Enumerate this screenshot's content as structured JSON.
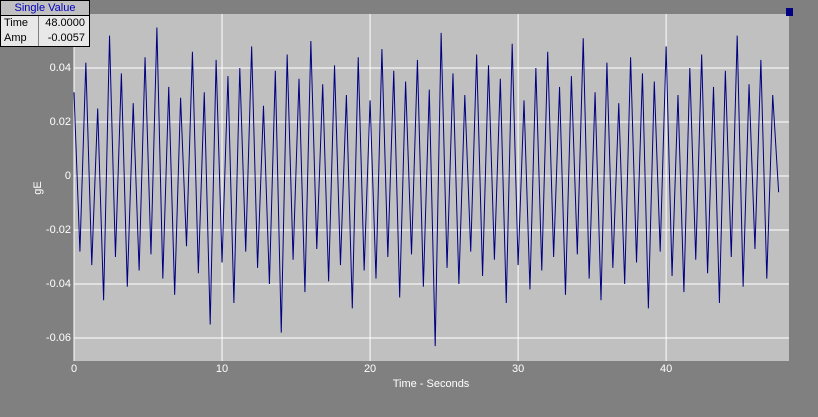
{
  "chart_data": {
    "type": "line",
    "ylabel": "gE",
    "xlabel": "Time - Seconds",
    "x": [
      0,
      0.4,
      0.8,
      1.2,
      1.6,
      2,
      2.4,
      2.8,
      3.2,
      3.6,
      4,
      4.4,
      4.8,
      5.2,
      5.6,
      6,
      6.4,
      6.8,
      7.2,
      7.6,
      8,
      8.4,
      8.8,
      9.2,
      9.6,
      10,
      10.4,
      10.8,
      11.2,
      11.6,
      12,
      12.4,
      12.8,
      13.2,
      13.6,
      14,
      14.4,
      14.8,
      15.2,
      15.6,
      16,
      16.4,
      16.8,
      17.2,
      17.6,
      18,
      18.4,
      18.8,
      19.2,
      19.6,
      20,
      20.4,
      20.8,
      21.2,
      21.6,
      22,
      22.4,
      22.8,
      23.2,
      23.6,
      24,
      24.4,
      24.8,
      25.2,
      25.6,
      26,
      26.4,
      26.8,
      27.2,
      27.6,
      28,
      28.4,
      28.8,
      29.2,
      29.6,
      30,
      30.4,
      30.8,
      31.2,
      31.6,
      32,
      32.4,
      32.8,
      33.2,
      33.6,
      34,
      34.4,
      34.8,
      35.2,
      35.6,
      36,
      36.4,
      36.8,
      37.2,
      37.6,
      38,
      38.4,
      38.8,
      39.2,
      39.6,
      40,
      40.4,
      40.8,
      41.2,
      41.6,
      42,
      42.4,
      42.8,
      43.2,
      43.6,
      44,
      44.4,
      44.8,
      45.2,
      45.6,
      46,
      46.4,
      46.8,
      47.2,
      47.6
    ],
    "series": [
      {
        "color": "#000080",
        "values": [
          0.031,
          -0.028,
          0.042,
          -0.033,
          0.025,
          -0.046,
          0.052,
          -0.03,
          0.038,
          -0.041,
          0.027,
          -0.035,
          0.044,
          -0.029,
          0.055,
          -0.038,
          0.033,
          -0.044,
          0.029,
          -0.026,
          0.046,
          -0.036,
          0.031,
          -0.055,
          0.043,
          -0.032,
          0.037,
          -0.047,
          0.04,
          -0.028,
          0.048,
          -0.034,
          0.026,
          -0.04,
          0.039,
          -0.058,
          0.045,
          -0.031,
          0.036,
          -0.043,
          0.05,
          -0.027,
          0.034,
          -0.039,
          0.041,
          -0.033,
          0.03,
          -0.049,
          0.044,
          -0.035,
          0.028,
          -0.038,
          0.047,
          -0.03,
          0.039,
          -0.045,
          0.035,
          -0.029,
          0.043,
          -0.041,
          0.032,
          -0.063,
          0.053,
          -0.034,
          0.038,
          -0.04,
          0.03,
          -0.028,
          0.045,
          -0.037,
          0.041,
          -0.031,
          0.036,
          -0.047,
          0.049,
          -0.033,
          0.028,
          -0.042,
          0.04,
          -0.035,
          0.046,
          -0.03,
          0.033,
          -0.044,
          0.037,
          -0.029,
          0.051,
          -0.038,
          0.031,
          -0.046,
          0.042,
          -0.034,
          0.027,
          -0.04,
          0.044,
          -0.032,
          0.038,
          -0.049,
          0.035,
          -0.028,
          0.048,
          -0.037,
          0.03,
          -0.043,
          0.04,
          -0.031,
          0.045,
          -0.036,
          0.033,
          -0.047,
          0.039,
          -0.03,
          0.052,
          -0.041,
          0.034,
          -0.027,
          0.043,
          -0.038,
          0.03,
          -0.006
        ]
      }
    ],
    "xlim": [
      0,
      48.3
    ],
    "xticks": [
      0,
      10,
      20,
      30,
      40
    ],
    "ylim": [
      -0.0685,
      0.06
    ],
    "yticks": [
      -0.06,
      -0.04,
      -0.02,
      0,
      0.02,
      0.04
    ],
    "grid": true
  },
  "readout": {
    "title": "Single Value",
    "rows": [
      [
        "Time",
        "48.0000"
      ],
      [
        "Amp",
        "-0.0057"
      ]
    ]
  }
}
